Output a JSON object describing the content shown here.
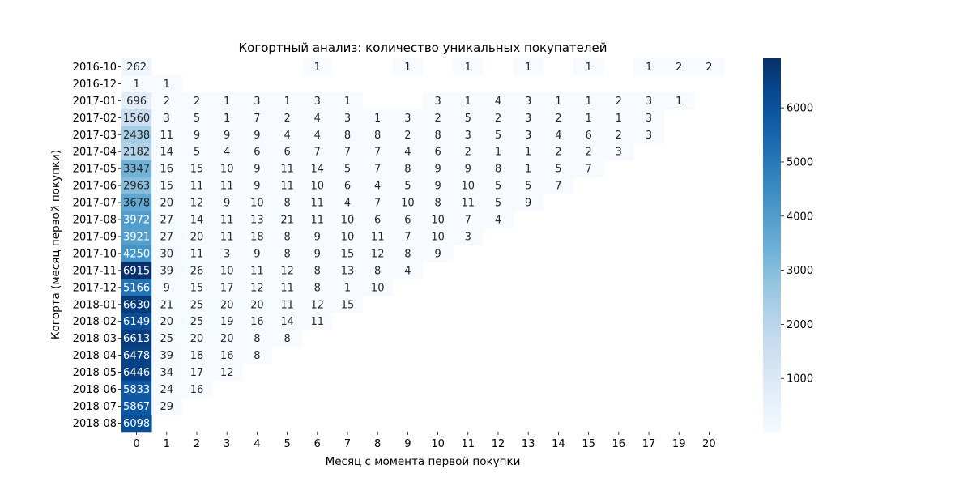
{
  "chart_data": {
    "type": "heatmap",
    "title": "Когортный анализ: количество уникальных покупателей",
    "xlabel": "Месяц с момента первой покупки",
    "ylabel": "Когорта (месяц первой покупки)",
    "x": [
      "0",
      "1",
      "2",
      "3",
      "4",
      "5",
      "6",
      "7",
      "8",
      "9",
      "10",
      "11",
      "12",
      "13",
      "14",
      "15",
      "16",
      "17",
      "19",
      "20"
    ],
    "y": [
      "2016-10",
      "2016-12",
      "2017-01",
      "2017-02",
      "2017-03",
      "2017-04",
      "2017-05",
      "2017-06",
      "2017-07",
      "2017-08",
      "2017-09",
      "2017-10",
      "2017-11",
      "2017-12",
      "2018-01",
      "2018-02",
      "2018-03",
      "2018-04",
      "2018-05",
      "2018-06",
      "2018-07",
      "2018-08"
    ],
    "values": [
      [
        262,
        null,
        null,
        null,
        null,
        null,
        1,
        null,
        null,
        1,
        null,
        1,
        null,
        1,
        null,
        1,
        null,
        1,
        2,
        2
      ],
      [
        1,
        1,
        null,
        null,
        null,
        null,
        null,
        null,
        null,
        null,
        null,
        null,
        null,
        null,
        null,
        null,
        null,
        null,
        null,
        null
      ],
      [
        696,
        2,
        2,
        1,
        3,
        1,
        3,
        1,
        null,
        null,
        3,
        1,
        4,
        3,
        1,
        1,
        2,
        3,
        1,
        null
      ],
      [
        1560,
        3,
        5,
        1,
        7,
        2,
        4,
        3,
        1,
        3,
        2,
        5,
        2,
        3,
        2,
        1,
        1,
        3,
        null,
        null
      ],
      [
        2438,
        11,
        9,
        9,
        9,
        4,
        4,
        8,
        8,
        2,
        8,
        3,
        5,
        3,
        4,
        6,
        2,
        3,
        null,
        null
      ],
      [
        2182,
        14,
        5,
        4,
        6,
        6,
        7,
        7,
        7,
        4,
        6,
        2,
        1,
        1,
        2,
        2,
        3,
        null,
        null,
        null
      ],
      [
        3347,
        16,
        15,
        10,
        9,
        11,
        14,
        5,
        7,
        8,
        9,
        9,
        8,
        1,
        5,
        7,
        null,
        null,
        null,
        null
      ],
      [
        2963,
        15,
        11,
        11,
        9,
        11,
        10,
        6,
        4,
        5,
        9,
        10,
        5,
        5,
        7,
        null,
        null,
        null,
        null,
        null
      ],
      [
        3678,
        20,
        12,
        9,
        10,
        8,
        11,
        4,
        7,
        10,
        8,
        11,
        5,
        9,
        null,
        null,
        null,
        null,
        null,
        null
      ],
      [
        3972,
        27,
        14,
        11,
        13,
        21,
        11,
        10,
        6,
        6,
        10,
        7,
        4,
        null,
        null,
        null,
        null,
        null,
        null,
        null
      ],
      [
        3921,
        27,
        20,
        11,
        18,
        8,
        9,
        10,
        11,
        7,
        10,
        3,
        null,
        null,
        null,
        null,
        null,
        null,
        null,
        null
      ],
      [
        4250,
        30,
        11,
        3,
        9,
        8,
        9,
        15,
        12,
        8,
        9,
        null,
        null,
        null,
        null,
        null,
        null,
        null,
        null,
        null
      ],
      [
        6915,
        39,
        26,
        10,
        11,
        12,
        8,
        13,
        8,
        4,
        null,
        null,
        null,
        null,
        null,
        null,
        null,
        null,
        null,
        null
      ],
      [
        5166,
        9,
        15,
        17,
        12,
        11,
        8,
        1,
        10,
        null,
        null,
        null,
        null,
        null,
        null,
        null,
        null,
        null,
        null,
        null
      ],
      [
        6630,
        21,
        25,
        20,
        20,
        11,
        12,
        15,
        null,
        null,
        null,
        null,
        null,
        null,
        null,
        null,
        null,
        null,
        null,
        null
      ],
      [
        6149,
        20,
        25,
        19,
        16,
        14,
        11,
        null,
        null,
        null,
        null,
        null,
        null,
        null,
        null,
        null,
        null,
        null,
        null,
        null
      ],
      [
        6613,
        25,
        20,
        20,
        8,
        8,
        null,
        null,
        null,
        null,
        null,
        null,
        null,
        null,
        null,
        null,
        null,
        null,
        null,
        null
      ],
      [
        6478,
        39,
        18,
        16,
        8,
        null,
        null,
        null,
        null,
        null,
        null,
        null,
        null,
        null,
        null,
        null,
        null,
        null,
        null,
        null
      ],
      [
        6446,
        34,
        17,
        12,
        null,
        null,
        null,
        null,
        null,
        null,
        null,
        null,
        null,
        null,
        null,
        null,
        null,
        null,
        null,
        null
      ],
      [
        5833,
        24,
        16,
        null,
        null,
        null,
        null,
        null,
        null,
        null,
        null,
        null,
        null,
        null,
        null,
        null,
        null,
        null,
        null,
        null
      ],
      [
        5867,
        29,
        null,
        null,
        null,
        null,
        null,
        null,
        null,
        null,
        null,
        null,
        null,
        null,
        null,
        null,
        null,
        null,
        null,
        null
      ],
      [
        6098,
        null,
        null,
        null,
        null,
        null,
        null,
        null,
        null,
        null,
        null,
        null,
        null,
        null,
        null,
        null,
        null,
        null,
        null,
        null
      ]
    ],
    "colormap": "Blues",
    "colorbar": {
      "ticks": [
        "1000",
        "2000",
        "3000",
        "4000",
        "5000",
        "6000"
      ],
      "min": 1,
      "max": 6915
    },
    "annotated": true,
    "grid": false
  }
}
